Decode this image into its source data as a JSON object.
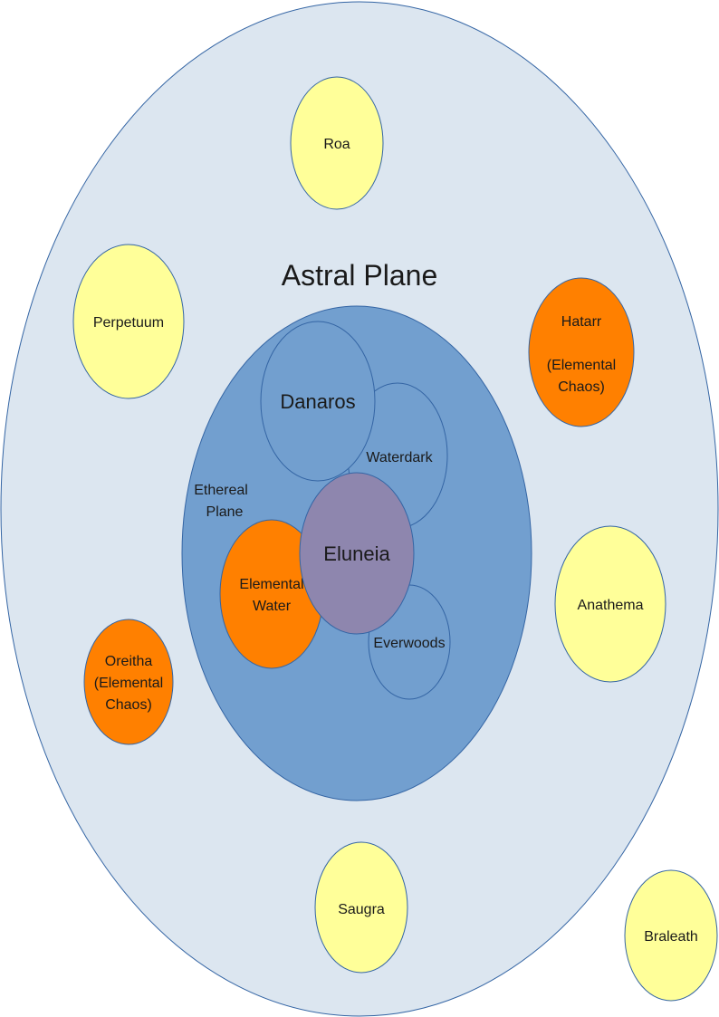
{
  "title": "Astral Plane",
  "ethereal": {
    "line1": "Ethereal",
    "line2": "Plane"
  },
  "danaros": "Danaros",
  "waterdark": "Waterdark",
  "eluneia": "Eluneia",
  "elemental_water": {
    "line1": "Elemental",
    "line2": "Water"
  },
  "everwoods": "Everwoods",
  "roa": "Roa",
  "perpetuum": "Perpetuum",
  "hatarr": {
    "line1": "Hatarr",
    "line2": "(Elemental",
    "line3": "Chaos)"
  },
  "anathema": "Anathema",
  "oreitha": {
    "line1": "Oreitha",
    "line2": "(Elemental",
    "line3": "Chaos)"
  },
  "saugra": "Saugra",
  "braleath": "Braleath",
  "colors": {
    "astral_fill": "#dce6f0",
    "ethereal_fill": "#729fcf",
    "outline": "#3465a4",
    "eluneia_fill": "#8e86ae",
    "chaos_fill": "#ff8000",
    "plane_fill": "#ffff99"
  }
}
